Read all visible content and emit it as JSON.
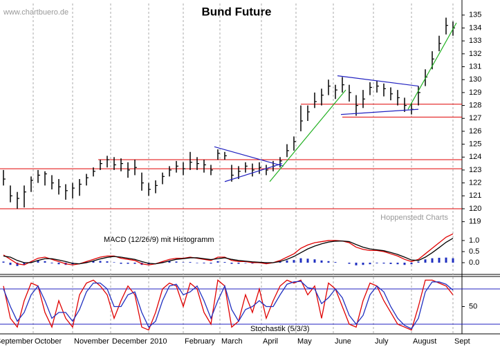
{
  "chart_data": [
    {
      "type": "ohlc",
      "title": "Bund Future",
      "source": "www.chartbuero.de",
      "credit": "Hoppenstedt Charts",
      "color": "#000000",
      "categories": [
        null,
        null,
        null,
        null,
        null,
        null,
        null,
        null,
        null,
        null,
        null,
        null,
        null,
        null,
        null,
        null,
        null,
        null,
        null,
        null,
        null,
        null,
        null,
        null,
        null,
        null,
        null,
        null,
        null,
        null,
        null,
        null,
        null,
        null,
        null,
        null,
        null,
        null,
        null,
        null,
        null,
        null,
        null,
        null,
        null,
        null,
        null,
        null,
        null,
        null,
        null,
        null,
        null,
        null,
        null,
        null,
        null,
        null,
        null,
        null,
        null,
        null,
        null,
        null,
        null,
        null
      ],
      "xlim": [
        0,
        66
      ],
      "xticks": [
        {
          "value": -0.8,
          "label": "September"
        },
        {
          "value": 4.8,
          "label": "October"
        },
        {
          "value": 10.5,
          "label": "November"
        },
        {
          "value": 16,
          "label": "December"
        },
        {
          "value": 21.5,
          "label": "2010"
        },
        {
          "value": 26.5,
          "label": "February"
        },
        {
          "value": 31.8,
          "label": "March"
        },
        {
          "value": 37.8,
          "label": "April"
        },
        {
          "value": 42.8,
          "label": "May"
        },
        {
          "value": 48.2,
          "label": "June"
        },
        {
          "value": 54,
          "label": "July"
        },
        {
          "value": 59.5,
          "label": "August"
        },
        {
          "value": 65.5,
          "label": "Sept"
        }
      ],
      "high": [
        123.0,
        121.8,
        121.3,
        121.8,
        122.5,
        123.0,
        122.9,
        122.6,
        122.3,
        121.9,
        122.0,
        122.3,
        122.7,
        123.2,
        123.8,
        124.1,
        124.0,
        123.9,
        123.6,
        123.8,
        122.8,
        122.0,
        122.2,
        122.8,
        123.3,
        123.7,
        123.6,
        124.4,
        124.0,
        123.8,
        123.4,
        124.6,
        124.4,
        123.4,
        123.3,
        123.6,
        123.5,
        123.6,
        123.4,
        123.7,
        124.0,
        125.0,
        125.6,
        128.0,
        128.0,
        129.0,
        129.3,
        130.0,
        129.6,
        130.2,
        129.6,
        128.8,
        129.2,
        129.8,
        129.9,
        129.7,
        129.4,
        129.2,
        128.6,
        128.2,
        129.5,
        130.8,
        132.2,
        133.4,
        134.8,
        134.5
      ],
      "low": [
        121.8,
        120.5,
        120.0,
        120.1,
        121.3,
        122.0,
        121.8,
        121.5,
        121.1,
        120.7,
        120.8,
        121.0,
        121.8,
        122.5,
        123.0,
        123.2,
        123.0,
        122.9,
        122.4,
        122.6,
        121.4,
        121.0,
        121.2,
        121.9,
        122.5,
        122.8,
        122.6,
        123.0,
        123.0,
        122.8,
        122.6,
        123.8,
        123.8,
        122.1,
        122.3,
        122.8,
        122.5,
        122.7,
        122.6,
        122.9,
        123.2,
        124.0,
        124.5,
        126.0,
        126.8,
        127.8,
        128.0,
        128.8,
        128.5,
        129.0,
        128.3,
        127.2,
        127.8,
        128.8,
        129.0,
        128.7,
        128.4,
        128.0,
        127.5,
        127.3,
        128.0,
        129.5,
        130.8,
        132.2,
        133.5,
        133.4
      ],
      "close": [
        122.3,
        121.0,
        120.8,
        121.3,
        122.2,
        122.6,
        122.7,
        122.0,
        121.7,
        121.4,
        121.6,
        121.9,
        122.4,
        122.9,
        123.5,
        123.8,
        123.4,
        123.5,
        123.0,
        123.2,
        122.0,
        121.5,
        121.8,
        122.5,
        123.0,
        123.3,
        123.1,
        123.6,
        123.5,
        123.4,
        123.0,
        124.3,
        124.1,
        122.6,
        122.9,
        123.3,
        123.0,
        123.2,
        123.0,
        123.3,
        123.7,
        124.5,
        125.2,
        126.8,
        127.5,
        128.3,
        128.8,
        129.5,
        129.2,
        129.6,
        129.0,
        128.0,
        128.5,
        129.4,
        129.5,
        129.3,
        128.9,
        128.6,
        128.0,
        127.7,
        129.0,
        130.2,
        131.6,
        132.8,
        134.2,
        134.0
      ],
      "ylim": [
        118.5,
        135.9
      ],
      "yticks": [
        119,
        120,
        121,
        122,
        123,
        124,
        125,
        126,
        127,
        128,
        129,
        130,
        131,
        132,
        133,
        134,
        135
      ],
      "support_color": "#e00000",
      "support_lines": [
        {
          "value": 123.1,
          "start": 0
        },
        {
          "value": 123.8,
          "start": 14.2
        },
        {
          "value": 128.1,
          "start": 43.5
        },
        {
          "value": 127.1,
          "start": 49.5
        },
        {
          "value": 120.0,
          "start": 0
        }
      ],
      "trendlines": [
        {
          "color": "#2020c0",
          "x": [
            31,
            41
          ],
          "y": [
            124.8,
            123.3
          ]
        },
        {
          "color": "#2020c0",
          "x": [
            32.5,
            40.8
          ],
          "y": [
            122.1,
            123.5
          ]
        },
        {
          "color": "#2020c0",
          "x": [
            48.8,
            60.5
          ],
          "y": [
            130.3,
            129.5
          ]
        },
        {
          "color": "#2020c0",
          "x": [
            49.3,
            60.5
          ],
          "y": [
            127.3,
            127.7
          ]
        },
        {
          "color": "#20b020",
          "x": [
            39,
            50
          ],
          "y": [
            122.1,
            129.2
          ]
        },
        {
          "color": "#20b020",
          "x": [
            59,
            66
          ],
          "y": [
            127.7,
            134.4
          ]
        }
      ]
    },
    {
      "type": "macd",
      "label": "MACD (12/26/9) mit Histogramm",
      "ylim": [
        -0.53,
        1.56
      ],
      "yticks": [
        {
          "value": 0,
          "label": "0.0"
        },
        0.5,
        {
          "value": 1,
          "label": "1.0"
        }
      ],
      "series": [
        {
          "color": "#e00000",
          "values": [
            0.35,
            0.15,
            -0.05,
            -0.1,
            0.05,
            0.2,
            0.25,
            0.15,
            0.05,
            -0.05,
            -0.1,
            -0.05,
            0.05,
            0.15,
            0.25,
            0.3,
            0.3,
            0.2,
            0.15,
            0.1,
            -0.05,
            -0.1,
            -0.05,
            0.05,
            0.15,
            0.2,
            0.2,
            0.25,
            0.2,
            0.15,
            0.1,
            0.25,
            0.25,
            0.1,
            0.05,
            0.05,
            0.0,
            0.0,
            -0.05,
            0.0,
            0.1,
            0.25,
            0.4,
            0.65,
            0.8,
            0.9,
            0.95,
            1.0,
            1.0,
            0.98,
            0.9,
            0.7,
            0.6,
            0.55,
            0.55,
            0.5,
            0.4,
            0.3,
            0.15,
            0.05,
            0.15,
            0.4,
            0.65,
            0.9,
            1.15,
            1.3
          ]
        },
        {
          "color": "#000000",
          "values": [
            0.3,
            0.25,
            0.1,
            0.0,
            0.0,
            0.1,
            0.18,
            0.18,
            0.12,
            0.05,
            -0.03,
            -0.05,
            0.0,
            0.08,
            0.17,
            0.24,
            0.28,
            0.25,
            0.2,
            0.15,
            0.05,
            -0.03,
            -0.05,
            0.0,
            0.08,
            0.15,
            0.18,
            0.22,
            0.22,
            0.18,
            0.14,
            0.18,
            0.22,
            0.15,
            0.1,
            0.07,
            0.04,
            0.02,
            0.0,
            0.0,
            0.05,
            0.15,
            0.28,
            0.45,
            0.62,
            0.75,
            0.85,
            0.93,
            0.97,
            0.98,
            0.95,
            0.82,
            0.7,
            0.62,
            0.58,
            0.54,
            0.46,
            0.37,
            0.25,
            0.12,
            0.1,
            0.25,
            0.45,
            0.68,
            0.92,
            1.1
          ]
        }
      ],
      "histogram": {
        "color": "#2030c0",
        "values": [
          0.05,
          -0.1,
          -0.15,
          -0.1,
          0.05,
          0.1,
          0.07,
          -0.03,
          -0.07,
          -0.1,
          -0.07,
          0.0,
          0.05,
          0.07,
          0.08,
          0.06,
          0.02,
          -0.05,
          -0.05,
          -0.05,
          -0.1,
          -0.07,
          0.0,
          0.05,
          0.07,
          0.05,
          0.02,
          0.03,
          -0.02,
          -0.03,
          -0.04,
          0.07,
          0.03,
          -0.05,
          -0.05,
          -0.02,
          -0.04,
          -0.02,
          -0.05,
          0.0,
          0.05,
          0.1,
          0.12,
          0.2,
          0.18,
          0.15,
          0.1,
          0.07,
          0.03,
          0.0,
          -0.05,
          -0.12,
          -0.1,
          -0.07,
          -0.03,
          -0.04,
          -0.06,
          -0.07,
          -0.1,
          -0.07,
          0.05,
          0.15,
          0.2,
          0.22,
          0.23,
          0.2
        ]
      }
    },
    {
      "type": "stochastic",
      "label": "Stochastik (5/3/3)",
      "ylim": [
        7,
        101.2
      ],
      "yticks": [
        50
      ],
      "levels": [
        20,
        80
      ],
      "level_color": "#2020c0",
      "series": [
        {
          "color": "#e00000",
          "values": [
            85,
            30,
            15,
            60,
            90,
            85,
            40,
            15,
            60,
            30,
            15,
            70,
            90,
            95,
            85,
            70,
            30,
            60,
            85,
            70,
            15,
            10,
            40,
            80,
            90,
            85,
            50,
            90,
            80,
            40,
            20,
            95,
            85,
            15,
            25,
            70,
            40,
            80,
            30,
            60,
            85,
            95,
            90,
            95,
            70,
            85,
            30,
            90,
            80,
            50,
            20,
            15,
            60,
            90,
            85,
            60,
            40,
            20,
            15,
            10,
            50,
            95,
            95,
            90,
            85,
            70
          ]
        },
        {
          "color": "#2030c0",
          "values": [
            80,
            50,
            25,
            40,
            70,
            85,
            60,
            30,
            40,
            40,
            25,
            45,
            75,
            90,
            90,
            80,
            50,
            50,
            70,
            75,
            40,
            15,
            25,
            60,
            85,
            88,
            70,
            75,
            85,
            60,
            30,
            60,
            85,
            45,
            25,
            45,
            50,
            60,
            50,
            50,
            70,
            88,
            92,
            93,
            82,
            80,
            55,
            65,
            80,
            65,
            35,
            20,
            35,
            70,
            85,
            75,
            50,
            30,
            18,
            12,
            30,
            75,
            92,
            92,
            88,
            78
          ]
        }
      ]
    }
  ]
}
